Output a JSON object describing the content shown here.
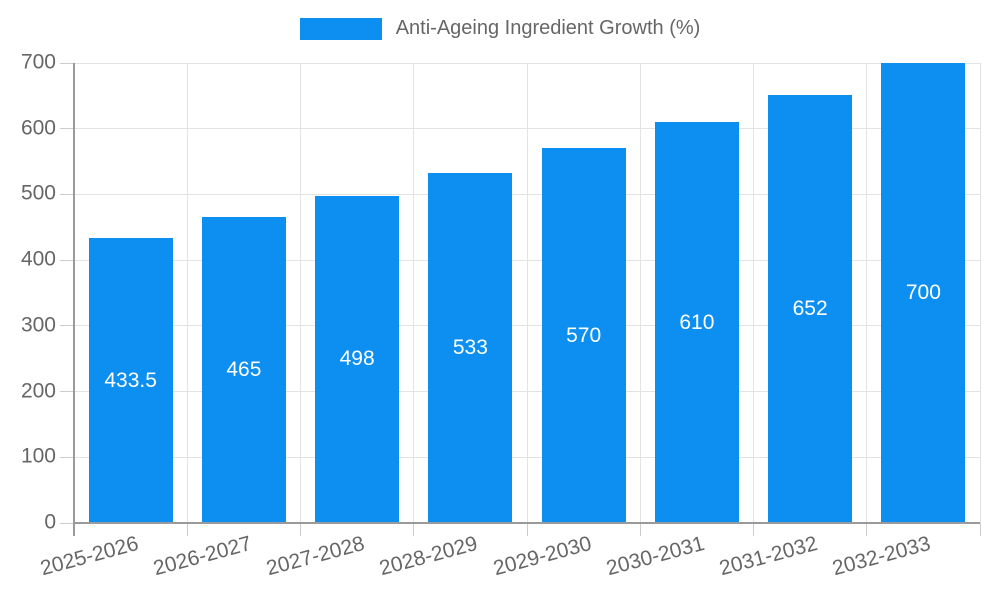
{
  "chart_data": {
    "type": "bar",
    "title": "",
    "legend_label": "Anti-Ageing Ingredient Growth (%)",
    "legend_position": "top",
    "categories": [
      "2025-2026",
      "2026-2027",
      "2027-2028",
      "2028-2029",
      "2029-2030",
      "2030-2031",
      "2031-2032",
      "2032-2033"
    ],
    "values": [
      433.5,
      465,
      498,
      533,
      570,
      610,
      652,
      700
    ],
    "value_labels": [
      "433.5",
      "465",
      "498",
      "533",
      "570",
      "610",
      "652",
      "700"
    ],
    "xlabel": "",
    "ylabel": "",
    "ylim": [
      0,
      700
    ],
    "yticks": [
      0,
      100,
      200,
      300,
      400,
      500,
      600,
      700
    ],
    "grid": true,
    "colors": {
      "bar": "#0d8ff2",
      "value_label": "#ffffff",
      "grid": "#e3e3e3",
      "tick": "#cccccc",
      "axis": "#9a9a9a",
      "tick_text": "#666666",
      "legend_text": "#666666"
    }
  }
}
